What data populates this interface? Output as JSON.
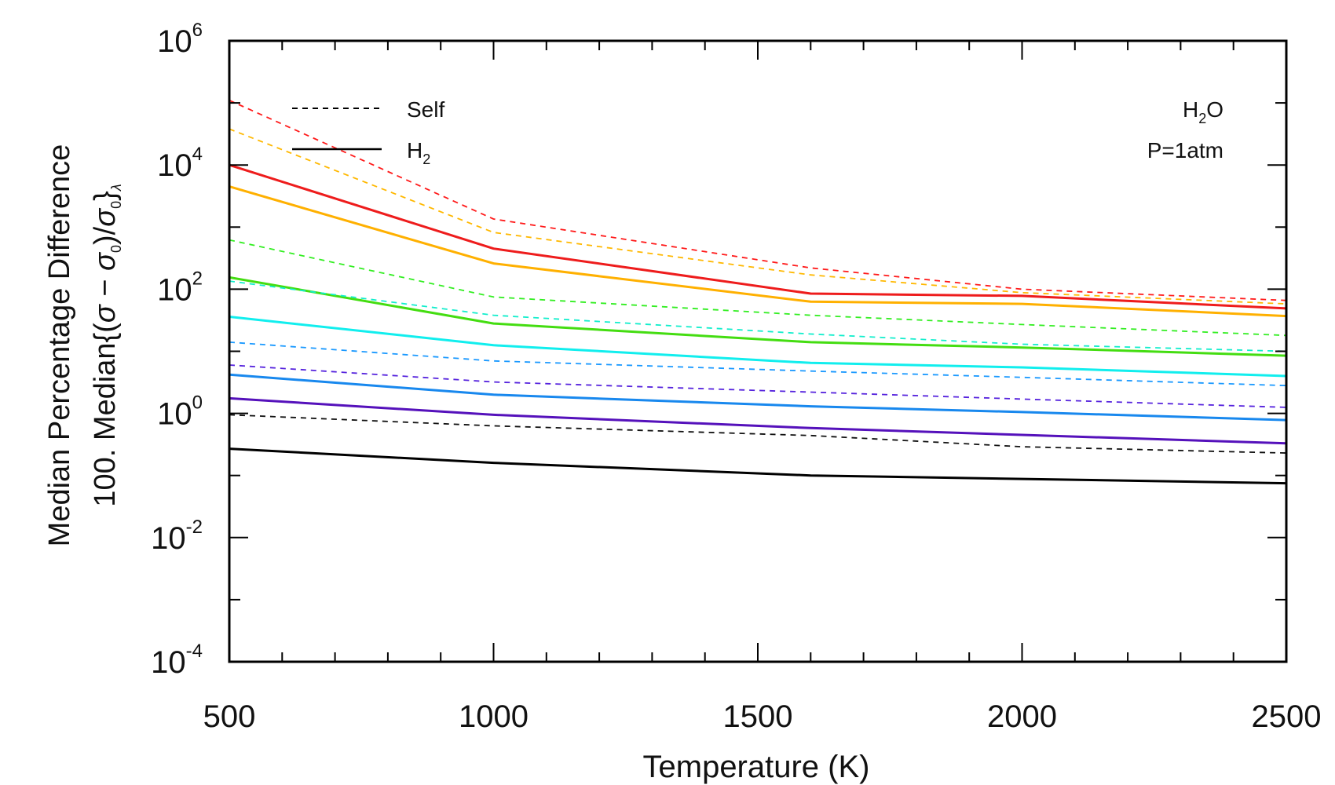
{
  "chart_data": {
    "type": "line",
    "title": "",
    "xlabel": "Temperature (K)",
    "ylabel_line1": "Median Percentage Difference",
    "ylabel_line2": "100. Median{(σ − σ₀)/σ₀}λ",
    "ylabel_math": {
      "prefix": "100. Median{(",
      "sigma": "σ",
      "minus": " − ",
      "sigma0": "σ",
      "sub0": "0",
      "mid": ")/",
      "sigma0b": "σ",
      "sub0b": "0",
      "close": "}",
      "lambda": "λ"
    },
    "xlim": [
      500,
      2500
    ],
    "ylim": [
      0.0001,
      1000000
    ],
    "yscale": "log",
    "x_ticks": [
      "500",
      "1000",
      "1500",
      "2000",
      "2500"
    ],
    "y_ticks": [
      {
        "base": "10",
        "exp": "6",
        "value": 1000000
      },
      {
        "base": "10",
        "exp": "4",
        "value": 10000
      },
      {
        "base": "10",
        "exp": "2",
        "value": 100
      },
      {
        "base": "10",
        "exp": "0",
        "value": 1
      },
      {
        "base": "10",
        "exp": "-2",
        "value": 0.01
      },
      {
        "base": "10",
        "exp": "-4",
        "value": 0.0001
      }
    ],
    "x": [
      500,
      1000,
      1600,
      2000,
      2500
    ],
    "series": [
      {
        "name": "red self",
        "color": "#ff1a1a",
        "style": "dashed",
        "values": [
          110000,
          1350,
          220,
          100,
          66
        ]
      },
      {
        "name": "red H2",
        "color": "#ee1c1c",
        "style": "solid",
        "values": [
          10000,
          450,
          85,
          78,
          49
        ]
      },
      {
        "name": "orange self",
        "color": "#ffb800",
        "style": "dashed",
        "values": [
          38000,
          820,
          170,
          88,
          58
        ]
      },
      {
        "name": "orange H2",
        "color": "#ffb000",
        "style": "solid",
        "values": [
          4500,
          260,
          63,
          58,
          37
        ]
      },
      {
        "name": "green self",
        "color": "#33ee22",
        "style": "dashed",
        "values": [
          620,
          75,
          38,
          27,
          18
        ]
      },
      {
        "name": "green H2",
        "color": "#44dd11",
        "style": "solid",
        "values": [
          155,
          28,
          14,
          11.5,
          8.5
        ]
      },
      {
        "name": "cyan self",
        "color": "#11eecc",
        "style": "dashed",
        "values": [
          135,
          38,
          19,
          13,
          10
        ]
      },
      {
        "name": "cyan H2",
        "color": "#11eeee",
        "style": "solid",
        "values": [
          36,
          12.5,
          6.5,
          5.5,
          4
        ]
      },
      {
        "name": "blue self",
        "color": "#1a99ff",
        "style": "dashed",
        "values": [
          14,
          7,
          4.8,
          3.8,
          2.8
        ]
      },
      {
        "name": "blue H2",
        "color": "#1888ee",
        "style": "solid",
        "values": [
          4.2,
          2.0,
          1.3,
          1.05,
          0.78
        ]
      },
      {
        "name": "violet self",
        "color": "#5522dd",
        "style": "dashed",
        "values": [
          6.0,
          3.2,
          2.2,
          1.7,
          1.25
        ]
      },
      {
        "name": "violet H2",
        "color": "#5511bb",
        "style": "solid",
        "values": [
          1.75,
          0.95,
          0.58,
          0.45,
          0.33
        ]
      },
      {
        "name": "black self",
        "color": "#111111",
        "style": "dashed",
        "values": [
          0.95,
          0.63,
          0.44,
          0.29,
          0.23
        ]
      },
      {
        "name": "black H2",
        "color": "#000000",
        "style": "solid",
        "values": [
          0.27,
          0.16,
          0.1,
          0.088,
          0.075
        ]
      }
    ],
    "legend": {
      "position": "top-left",
      "entries": [
        {
          "label": "Self",
          "style": "dashed"
        },
        {
          "label_base": "H",
          "label_sub": "2",
          "style": "solid"
        }
      ]
    },
    "annotations": {
      "species_base": "H",
      "species_sub": "2",
      "species_tail": "O",
      "pressure": "P=1atm"
    }
  }
}
